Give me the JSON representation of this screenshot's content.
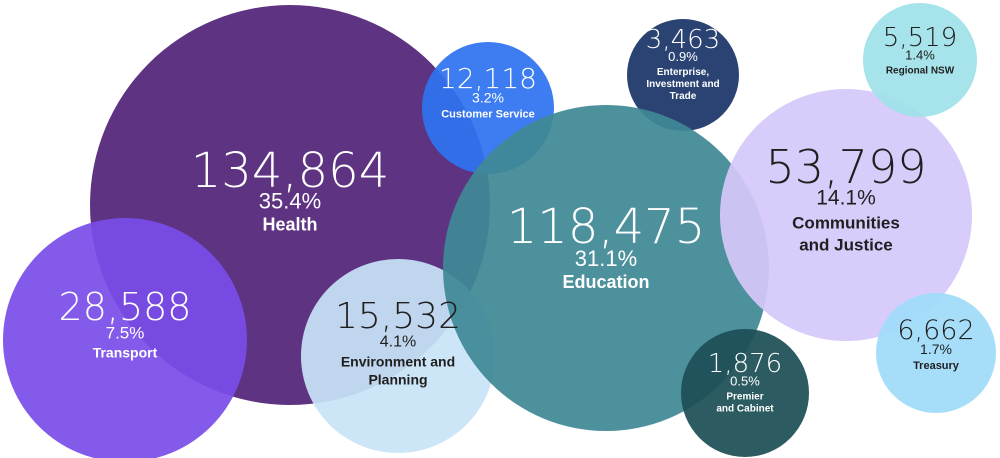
{
  "chart_data": {
    "type": "bubble",
    "title": "",
    "items": [
      {
        "value": "134,864",
        "percent": "35.4%",
        "label_lines": [
          "Health"
        ],
        "color": "#512378",
        "text_color": "#ffffff"
      },
      {
        "value": "28,588",
        "percent": "7.5%",
        "label_lines": [
          "Transport"
        ],
        "color": "#7a4ee8",
        "text_color": "#ffffff"
      },
      {
        "value": "12,118",
        "percent": "3.2%",
        "label_lines": [
          "Customer Service"
        ],
        "color": "#2f73f0",
        "text_color": "#ffffff"
      },
      {
        "value": "15,532",
        "percent": "4.1%",
        "label_lines": [
          "Environment and",
          "Planning"
        ],
        "color": "#c8e3f6",
        "text_color": "#1f1f1f"
      },
      {
        "value": "3,463",
        "percent": "0.9%",
        "label_lines": [
          "Enterprise,",
          "Investment and",
          "Trade"
        ],
        "color": "#1a3568",
        "text_color": "#ffffff"
      },
      {
        "value": "118,475",
        "percent": "31.1%",
        "label_lines": [
          "Education"
        ],
        "color": "#3f8996",
        "text_color": "#ffffff"
      },
      {
        "value": "53,799",
        "percent": "14.1%",
        "label_lines": [
          "Communities",
          "and Justice"
        ],
        "color": "#d5c8fa",
        "text_color": "#1f1f1f"
      },
      {
        "value": "5,519",
        "percent": "1.4%",
        "label_lines": [
          "Regional NSW"
        ],
        "color": "#9fe1e8",
        "text_color": "#1f1f1f"
      },
      {
        "value": "6,662",
        "percent": "1.7%",
        "label_lines": [
          "Treasury"
        ],
        "color": "#9fdcfa",
        "text_color": "#1f1f1f"
      },
      {
        "value": "1,876",
        "percent": "0.5%",
        "label_lines": [
          "Premier",
          "and Cabinet"
        ],
        "color": "#1d4f56",
        "text_color": "#ffffff"
      }
    ]
  }
}
